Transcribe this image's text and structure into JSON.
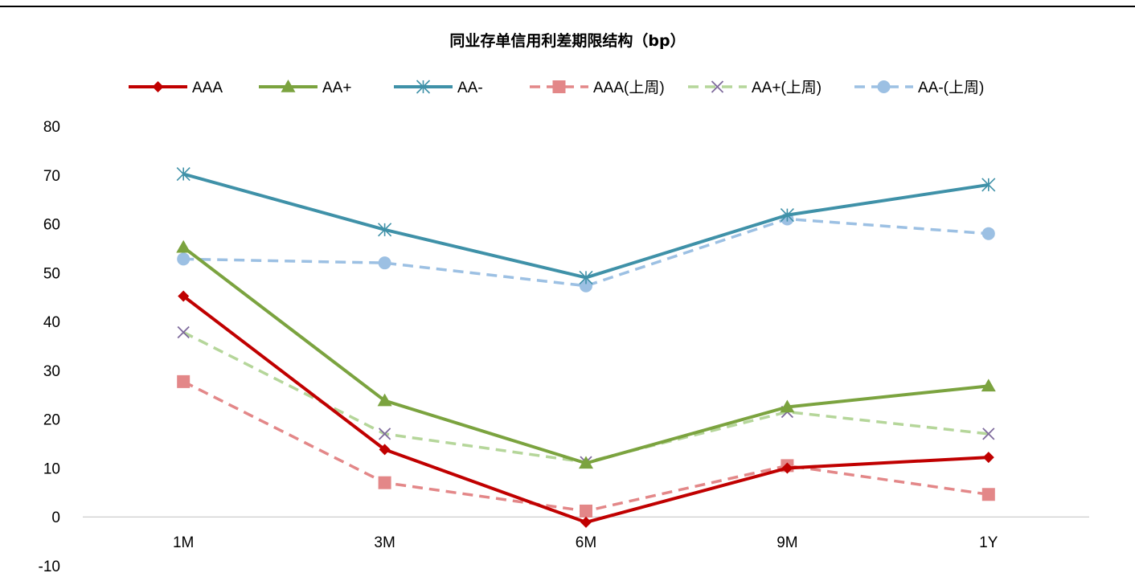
{
  "chart_data": {
    "type": "line",
    "title": "同业存单信用利差期限结构（bp）",
    "xlabel": "",
    "ylabel": "",
    "categories": [
      "1M",
      "3M",
      "6M",
      "9M",
      "1Y"
    ],
    "ylim": [
      -10,
      80
    ],
    "yticks": [
      -10,
      0,
      10,
      20,
      30,
      40,
      50,
      60,
      70,
      80
    ],
    "grid": false,
    "legend_position": "top",
    "series": [
      {
        "name": "AAA",
        "values": [
          45.2,
          13.8,
          -1.1,
          10.0,
          12.2
        ],
        "color": "#c00000",
        "dashed": false,
        "marker": "diamond"
      },
      {
        "name": "AA+",
        "values": [
          55.2,
          23.8,
          11.0,
          22.5,
          26.8
        ],
        "color": "#7ba33f",
        "dashed": false,
        "marker": "triangle"
      },
      {
        "name": "AA-",
        "values": [
          70.2,
          58.8,
          49.0,
          61.8,
          68.0
        ],
        "color": "#3f91a8",
        "dashed": false,
        "marker": "asterisk"
      },
      {
        "name": "AAA(上周)",
        "values": [
          27.7,
          7.0,
          1.2,
          10.5,
          4.6
        ],
        "color": "#e38788",
        "dashed": true,
        "marker": "square"
      },
      {
        "name": "AA+(上周)",
        "values": [
          37.8,
          17.0,
          11.2,
          21.5,
          17.0
        ],
        "color": "#b5d69a",
        "dashed": true,
        "marker": "x",
        "marker_color": "#7e6a9c"
      },
      {
        "name": "AA-(上周)",
        "values": [
          52.8,
          52.0,
          47.3,
          61.0,
          58.0
        ],
        "color": "#9cc0e3",
        "dashed": true,
        "marker": "circle"
      }
    ]
  }
}
